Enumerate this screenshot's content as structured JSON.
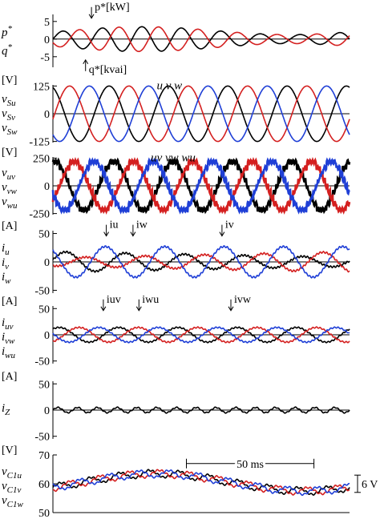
{
  "panels": [
    {
      "id": "pq",
      "unit": "",
      "ylabels": [
        "p*",
        "q*"
      ],
      "ticks": [
        [
          "5",
          5
        ],
        [
          "0",
          0
        ],
        [
          "-5",
          -5
        ]
      ],
      "ylim": [
        -8,
        7
      ],
      "annotations": [
        {
          "text": "p*[kW]",
          "arrow": "down",
          "tx": 0.13,
          "level": 5
        },
        {
          "text": "q*[kvai]",
          "arrow": "up",
          "tx": 0.11,
          "level": -5
        }
      ]
    },
    {
      "id": "vS",
      "unit": "[V]",
      "ylabels": [
        "vSu",
        "vSv",
        "vSw"
      ],
      "ticks": [
        [
          "125",
          125
        ],
        [
          "0",
          0
        ],
        [
          "-125",
          -125
        ]
      ],
      "ylim": [
        -130,
        130
      ],
      "annotations": [
        {
          "text": "u  v  w",
          "arrow": "none",
          "tx": 0.35,
          "level": 125
        }
      ]
    },
    {
      "id": "vline",
      "unit": "[V]",
      "ylabels": [
        "vuv",
        "vvw",
        "vwu"
      ],
      "ticks": [
        [
          "250",
          250
        ],
        [
          "0",
          0
        ],
        [
          "-250",
          -250
        ]
      ],
      "ylim": [
        -260,
        260
      ],
      "annotations": [
        {
          "text": "uv  vw  wu",
          "arrow": "none",
          "tx": 0.33,
          "level": 250
        }
      ]
    },
    {
      "id": "iphase",
      "unit": "[A]",
      "ylabels": [
        "iu",
        "iv",
        "iw"
      ],
      "ticks": [
        [
          "50",
          50
        ],
        [
          "0",
          0
        ],
        [
          "-50",
          -50
        ]
      ],
      "ylim": [
        -55,
        55
      ],
      "annotations": [
        {
          "text": "iu",
          "arrow": "down",
          "tx": 0.18,
          "level": 40
        },
        {
          "text": "iw",
          "arrow": "down",
          "tx": 0.27,
          "level": 40
        },
        {
          "text": "iv",
          "arrow": "down",
          "tx": 0.57,
          "level": 40
        }
      ]
    },
    {
      "id": "idelta",
      "unit": "[A]",
      "ylabels": [
        "iuv",
        "ivw",
        "iwu"
      ],
      "ticks": [
        [
          "50",
          50
        ],
        [
          "0",
          0
        ],
        [
          "-50",
          -50
        ]
      ],
      "ylim": [
        -55,
        55
      ],
      "annotations": [
        {
          "text": "iuv",
          "arrow": "down",
          "tx": 0.17,
          "level": 40
        },
        {
          "text": "iwu",
          "arrow": "down",
          "tx": 0.29,
          "level": 40
        },
        {
          "text": "ivw",
          "arrow": "down",
          "tx": 0.6,
          "level": 40
        }
      ]
    },
    {
      "id": "iz",
      "unit": "[A]",
      "ylabels": [
        "iZ"
      ],
      "ticks": [
        [
          "50",
          50
        ],
        [
          "0",
          0
        ],
        [
          "-50",
          -50
        ]
      ],
      "ylim": [
        -55,
        55
      ],
      "annotations": []
    },
    {
      "id": "vc",
      "unit": "[V]",
      "ylabels": [
        "vC1u",
        "vC1v",
        "vC1w"
      ],
      "ticks": [
        [
          "70",
          70
        ],
        [
          "60",
          60
        ],
        [
          "50",
          50
        ]
      ],
      "ylim": [
        50,
        70
      ],
      "annotations": [
        {
          "text": "50 ms",
          "arrow": "span",
          "tx": 0.45,
          "tx2": 0.88,
          "level": 67
        },
        {
          "text": "6 V",
          "arrow": "vspan",
          "tx": 1.0,
          "level": 57,
          "level2": 63
        }
      ]
    }
  ],
  "colors": {
    "series1": "#000000",
    "series2": "#d42020",
    "series3": "#1f3fd6"
  },
  "chart_data": [
    {
      "type": "line",
      "panel": "pq",
      "series": [
        {
          "name": "p*",
          "description": "oscillating around 0 with amplitude up to ~4 kW, larger in first half"
        },
        {
          "name": "q*",
          "description": "oscillating around 0, phase shifted from p*"
        }
      ]
    },
    {
      "type": "line",
      "panel": "vS",
      "series": [
        {
          "name": "vSu",
          "amplitude": 125
        },
        {
          "name": "vSv",
          "amplitude": 125
        },
        {
          "name": "vSw",
          "amplitude": 125
        }
      ]
    },
    {
      "type": "line",
      "panel": "vline",
      "series": [
        {
          "name": "vuv",
          "amplitude": 215
        },
        {
          "name": "vvw",
          "amplitude": 215
        },
        {
          "name": "vwu",
          "amplitude": 215
        }
      ]
    },
    {
      "type": "line",
      "panel": "iphase",
      "series": [
        {
          "name": "iu",
          "amplitude": 18
        },
        {
          "name": "iv",
          "amplitude": 18
        },
        {
          "name": "iw",
          "amplitude": 28
        }
      ]
    },
    {
      "type": "line",
      "panel": "idelta",
      "series": [
        {
          "name": "iuv",
          "amplitude": 14
        },
        {
          "name": "ivw",
          "amplitude": 14
        },
        {
          "name": "iwu",
          "amplitude": 14
        }
      ]
    },
    {
      "type": "line",
      "panel": "iz",
      "series": [
        {
          "name": "iZ",
          "amplitude": 6
        }
      ]
    },
    {
      "type": "line",
      "panel": "vc",
      "series": [
        {
          "name": "vC1u",
          "range": [
            57,
            64
          ]
        },
        {
          "name": "vC1v",
          "range": [
            57,
            64
          ]
        },
        {
          "name": "vC1w",
          "range": [
            57,
            64
          ]
        }
      ]
    }
  ]
}
